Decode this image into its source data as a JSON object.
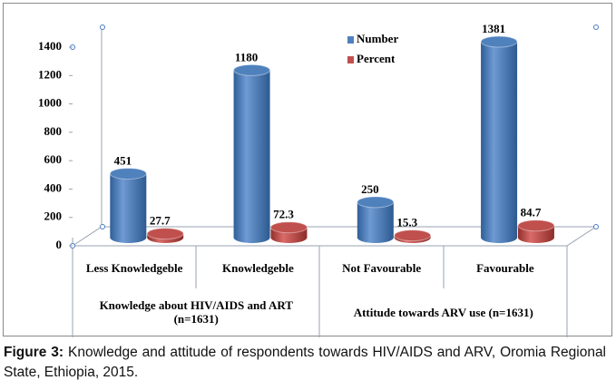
{
  "chart_data": {
    "type": "bar3d",
    "categories": [
      "Less Knowledgeble",
      "Knowledgeble",
      "Not Favourable",
      "Favourable"
    ],
    "groups": [
      "Knowledge about HIV/AIDS and ART (n=1631)",
      "Attitude towards ARV use (n=1631)"
    ],
    "series": [
      {
        "name": "Number",
        "color": "#4f81bd",
        "values": [
          451,
          1180,
          250,
          1381
        ]
      },
      {
        "name": "Percent",
        "color": "#c0504d",
        "values": [
          27.7,
          72.3,
          15.3,
          84.7
        ]
      }
    ],
    "ylim": [
      0,
      1400
    ],
    "yticks": [
      0,
      200,
      400,
      600,
      800,
      1000,
      1200,
      1400
    ],
    "grid": false,
    "legend": "top"
  },
  "caption": {
    "label": "Figure 3:",
    "text": "Knowledge and attitude of respondents towards HIV/AIDS and ARV, Oromia Regional State, Ethiopia, 2015."
  }
}
